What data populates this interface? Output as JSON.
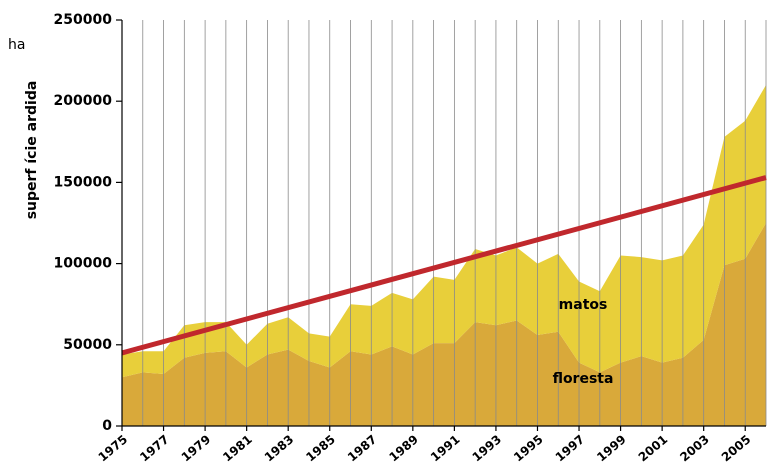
{
  "chart_data": {
    "type": "stacked_area",
    "y_unit": "ha",
    "ylabel": "superf ície ardida",
    "x": [
      1975,
      1976,
      1977,
      1978,
      1979,
      1980,
      1981,
      1982,
      1983,
      1984,
      1985,
      1986,
      1987,
      1988,
      1989,
      1990,
      1991,
      1992,
      1993,
      1994,
      1995,
      1996,
      1997,
      1998,
      1999,
      2000,
      2001,
      2002,
      2003,
      2004,
      2005,
      2006
    ],
    "xlim": [
      1975,
      2006
    ],
    "xticks": [
      1975,
      1977,
      1979,
      1981,
      1983,
      1985,
      1987,
      1989,
      1991,
      1993,
      1995,
      1997,
      1999,
      2001,
      2003,
      2005
    ],
    "ylim": [
      0,
      250000
    ],
    "yticks": [
      0,
      50000,
      100000,
      150000,
      200000,
      250000
    ],
    "grid": true,
    "series": [
      {
        "name": "floresta",
        "color": "#d9a93a",
        "values": [
          30000,
          33000,
          32000,
          42000,
          45000,
          46000,
          36000,
          44000,
          47000,
          40000,
          36000,
          46000,
          44000,
          49000,
          44000,
          51000,
          51000,
          64000,
          62000,
          65000,
          56000,
          58000,
          39000,
          33000,
          39000,
          43000,
          39000,
          42000,
          53000,
          99000,
          103000,
          125000
        ]
      },
      {
        "name": "matos",
        "color": "#e8cf3a",
        "values": [
          14000,
          13000,
          14000,
          20000,
          19000,
          18000,
          14000,
          19000,
          20000,
          17000,
          19000,
          29000,
          30000,
          33000,
          34000,
          41000,
          39000,
          45000,
          43000,
          45000,
          44000,
          48000,
          50000,
          50000,
          66000,
          61000,
          63000,
          63000,
          71000,
          79000,
          85000,
          85000
        ]
      }
    ],
    "trend_line": {
      "color": "#c0282d",
      "x": [
        1975,
        2006
      ],
      "values": [
        45000,
        153000
      ]
    }
  }
}
